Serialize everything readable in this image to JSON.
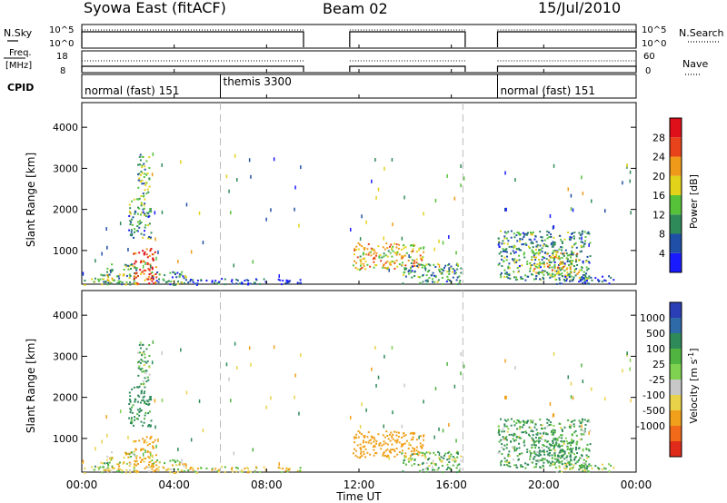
{
  "header": {
    "station": "Syowa East (fitACF)",
    "beam": "Beam 02",
    "date": "15/Jul/2010"
  },
  "sidepanels": {
    "nsky_label": "N.Sky",
    "nsky_ticks": [
      "10^5",
      "10^0"
    ],
    "nsearch_label": "N.Search",
    "nsearch_ticks": [
      "10^5",
      "10^0"
    ],
    "freq_label": "Freq.",
    "freq_unit": "[MHz]",
    "freq_ticks": [
      "18",
      "8"
    ],
    "nave_label": "Nave",
    "nave_ticks": [
      "60",
      "0"
    ],
    "cpid_label": "CPID"
  },
  "cpid_segments": [
    {
      "label": "normal (fast) 151",
      "start_hr": 0
    },
    {
      "label": "themis 3300",
      "start_hr": 6
    },
    {
      "label": "normal (fast) 151",
      "start_hr": 18
    }
  ],
  "panels": {
    "power": {
      "ylabel": "Slant Range [km]",
      "yticks": [
        "1000",
        "2000",
        "3000",
        "4000"
      ],
      "cbar_label": "Power [dB]",
      "cbar_ticks": [
        "4",
        "8",
        "12",
        "16",
        "20",
        "24",
        "28"
      ],
      "cbar_colors": [
        "#1a1aff",
        "#1f4fa6",
        "#2f8a5a",
        "#56c23a",
        "#e3d21a",
        "#f09a1a",
        "#e8431a",
        "#e0101a"
      ]
    },
    "velocity": {
      "ylabel": "Slant Range [km]",
      "yticks": [
        "1000",
        "2000",
        "3000",
        "4000"
      ],
      "cbar_label": "Velocity [m s",
      "cbar_label_sup": "-1",
      "cbar_label_end": "]",
      "cbar_ticks": [
        "1000",
        "500",
        "100",
        "25",
        "-25",
        "-100",
        "-500",
        "-1000"
      ],
      "cbar_colors": [
        "#2a3fb5",
        "#2f6aa8",
        "#2f8a5a",
        "#4fb540",
        "#7fd24f",
        "#c8c8c8",
        "#e8d24a",
        "#f0a01a",
        "#f06a1a",
        "#e02a1a"
      ]
    }
  },
  "xaxis": {
    "label": "Time UT",
    "ticks": [
      "00:00",
      "04:00",
      "08:00",
      "12:00",
      "16:00",
      "20:00",
      "00:00"
    ]
  },
  "chart_data": {
    "type": "heatmap",
    "title": "Syowa East (fitACF)  Beam 02  15/Jul/2010",
    "xlabel": "Time UT",
    "ylabel": "Slant Range [km]",
    "xlim_hours": [
      0,
      24
    ],
    "ylim_km": [
      180,
      4600
    ],
    "operating_intervals_hr": [
      [
        0,
        9.6
      ],
      [
        11.6,
        16.6
      ],
      [
        18,
        24
      ]
    ],
    "mode_boundaries_hr": [
      6,
      16.5
    ],
    "power_db_range": [
      0,
      30
    ],
    "velocity_range": [
      -1000,
      1000
    ],
    "echo_regions": [
      {
        "t": [
          0.0,
          1.2
        ],
        "r": [
          180,
          450
        ],
        "power": 14,
        "vel": 30
      },
      {
        "t": [
          1.0,
          2.4
        ],
        "r": [
          180,
          700
        ],
        "power": 12,
        "vel": -60
      },
      {
        "t": [
          2.2,
          3.2
        ],
        "r": [
          180,
          1100
        ],
        "power": 24,
        "vel": -150
      },
      {
        "t": [
          2.0,
          3.0
        ],
        "r": [
          1300,
          2300
        ],
        "power": 10,
        "vel": 200
      },
      {
        "t": [
          2.4,
          2.9
        ],
        "r": [
          2300,
          3400
        ],
        "power": 12,
        "vel": 80
      },
      {
        "t": [
          3.0,
          4.6
        ],
        "r": [
          180,
          500
        ],
        "power": 10,
        "vel": -40
      },
      {
        "t": [
          4.6,
          6.2
        ],
        "r": [
          180,
          350
        ],
        "power": 6,
        "vel": -60
      },
      {
        "t": [
          6.2,
          9.5
        ],
        "r": [
          180,
          330
        ],
        "power": 4,
        "vel": -80
      },
      {
        "t": [
          11.7,
          14.8
        ],
        "r": [
          550,
          1200
        ],
        "power": 18,
        "vel": -300
      },
      {
        "t": [
          13.8,
          16.4
        ],
        "r": [
          200,
          700
        ],
        "power": 10,
        "vel": 60
      },
      {
        "t": [
          18.0,
          22.0
        ],
        "r": [
          300,
          1500
        ],
        "power": 10,
        "vel": 90
      },
      {
        "t": [
          19.5,
          21.5
        ],
        "r": [
          400,
          1000
        ],
        "power": 16,
        "vel": 150
      },
      {
        "t": [
          20.5,
          23.0
        ],
        "r": [
          200,
          400
        ],
        "power": 6,
        "vel": 30
      }
    ]
  }
}
